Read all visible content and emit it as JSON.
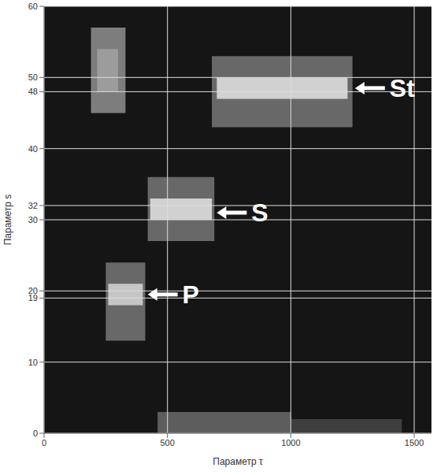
{
  "chart_data": {
    "type": "heatmap",
    "x_label": "Параметр τ",
    "y_label": "Параметр s",
    "xlim": [
      0,
      1570
    ],
    "ylim": [
      0,
      60
    ],
    "xticks": [
      0,
      500,
      1000,
      1500
    ],
    "yticks": [
      0,
      10,
      19,
      20,
      30,
      32,
      40,
      48,
      50,
      60
    ],
    "grid": true,
    "regions": [
      {
        "tau": [
          190,
          330
        ],
        "s": [
          45,
          57
        ],
        "level": 0.45
      },
      {
        "tau": [
          215,
          300
        ],
        "s": [
          48,
          54
        ],
        "level": 0.6
      },
      {
        "tau": [
          250,
          410
        ],
        "s": [
          13,
          24
        ],
        "level": 0.35
      },
      {
        "tau": [
          260,
          400
        ],
        "s": [
          18,
          21
        ],
        "level": 0.8
      },
      {
        "tau": [
          420,
          690
        ],
        "s": [
          27,
          36
        ],
        "level": 0.35
      },
      {
        "tau": [
          430,
          680
        ],
        "s": [
          30,
          33
        ],
        "level": 0.85
      },
      {
        "tau": [
          680,
          1250
        ],
        "s": [
          43,
          53
        ],
        "level": 0.35
      },
      {
        "tau": [
          700,
          1230
        ],
        "s": [
          47,
          50
        ],
        "level": 0.85
      },
      {
        "tau": [
          460,
          1000
        ],
        "s": [
          0,
          3
        ],
        "level": 0.3
      },
      {
        "tau": [
          1000,
          1450
        ],
        "s": [
          0,
          2
        ],
        "level": 0.15
      }
    ],
    "annotations": [
      {
        "text": "P",
        "x": 420,
        "y": 19.5
      },
      {
        "text": "S",
        "x": 700,
        "y": 31
      },
      {
        "text": "St",
        "x": 1260,
        "y": 48.5
      }
    ]
  }
}
